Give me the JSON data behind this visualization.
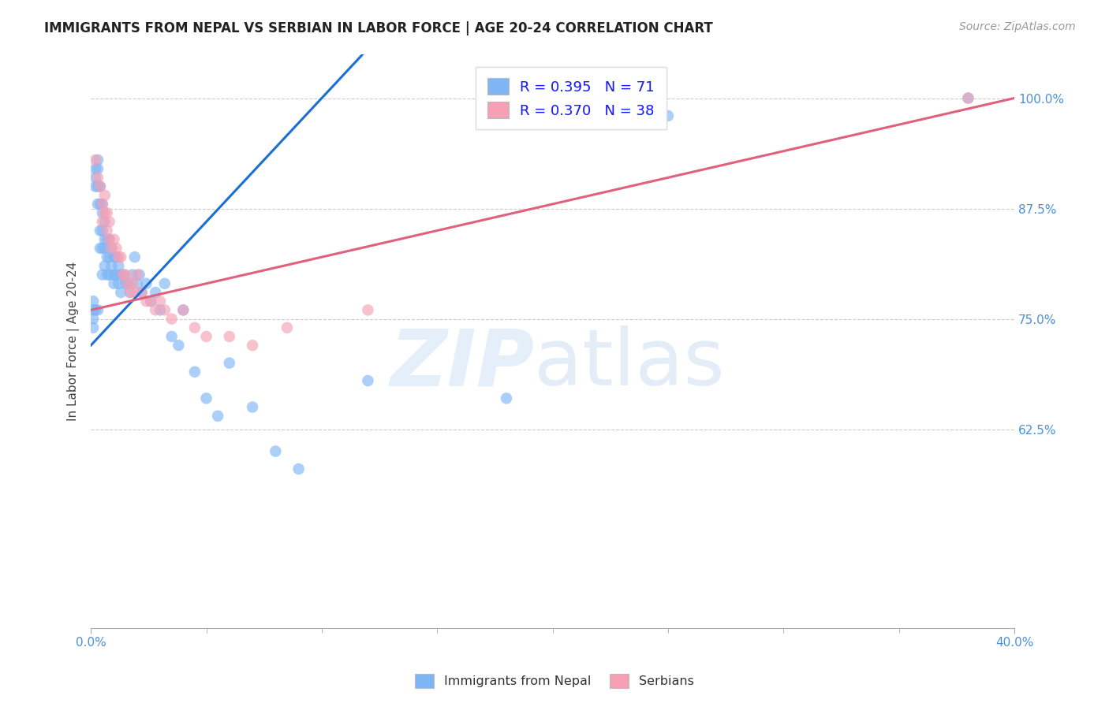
{
  "title": "IMMIGRANTS FROM NEPAL VS SERBIAN IN LABOR FORCE | AGE 20-24 CORRELATION CHART",
  "source": "Source: ZipAtlas.com",
  "ylabel": "In Labor Force | Age 20-24",
  "xlim": [
    0.0,
    0.4
  ],
  "ylim": [
    0.4,
    1.05
  ],
  "xtick_values": [
    0.0,
    0.4
  ],
  "xtick_labels": [
    "0.0%",
    "40.0%"
  ],
  "ytick_values": [
    0.625,
    0.75,
    0.875,
    1.0
  ],
  "ytick_labels": [
    "62.5%",
    "75.0%",
    "87.5%",
    "100.0%"
  ],
  "ytick_grid_values": [
    0.625,
    0.75,
    0.875,
    1.0
  ],
  "nepal_color": "#7eb6f5",
  "serbian_color": "#f5a0b5",
  "nepal_R": 0.395,
  "nepal_N": 71,
  "serbian_R": 0.37,
  "serbian_N": 38,
  "trend_nepal_color": "#1a6fd4",
  "trend_serbian_color": "#e0607e",
  "legend_label_nepal": "Immigrants from Nepal",
  "legend_label_serbian": "Serbians",
  "nepal_x": [
    0.001,
    0.001,
    0.001,
    0.001,
    0.002,
    0.002,
    0.002,
    0.002,
    0.003,
    0.003,
    0.003,
    0.003,
    0.003,
    0.004,
    0.004,
    0.004,
    0.004,
    0.005,
    0.005,
    0.005,
    0.005,
    0.005,
    0.006,
    0.006,
    0.006,
    0.006,
    0.007,
    0.007,
    0.007,
    0.008,
    0.008,
    0.008,
    0.009,
    0.009,
    0.01,
    0.01,
    0.01,
    0.011,
    0.011,
    0.012,
    0.012,
    0.013,
    0.013,
    0.014,
    0.015,
    0.016,
    0.017,
    0.018,
    0.019,
    0.02,
    0.021,
    0.022,
    0.024,
    0.026,
    0.028,
    0.03,
    0.032,
    0.035,
    0.038,
    0.04,
    0.045,
    0.05,
    0.055,
    0.06,
    0.07,
    0.08,
    0.09,
    0.12,
    0.18,
    0.25,
    0.38
  ],
  "nepal_y": [
    0.77,
    0.76,
    0.75,
    0.74,
    0.92,
    0.91,
    0.9,
    0.76,
    0.93,
    0.92,
    0.9,
    0.88,
    0.76,
    0.9,
    0.88,
    0.85,
    0.83,
    0.88,
    0.87,
    0.85,
    0.83,
    0.8,
    0.86,
    0.84,
    0.83,
    0.81,
    0.84,
    0.82,
    0.8,
    0.84,
    0.82,
    0.8,
    0.83,
    0.81,
    0.82,
    0.8,
    0.79,
    0.82,
    0.8,
    0.81,
    0.79,
    0.8,
    0.78,
    0.8,
    0.79,
    0.79,
    0.78,
    0.8,
    0.82,
    0.79,
    0.8,
    0.78,
    0.79,
    0.77,
    0.78,
    0.76,
    0.79,
    0.73,
    0.72,
    0.76,
    0.69,
    0.66,
    0.64,
    0.7,
    0.65,
    0.6,
    0.58,
    0.68,
    0.66,
    0.98,
    1.0
  ],
  "serbian_x": [
    0.002,
    0.003,
    0.004,
    0.005,
    0.005,
    0.006,
    0.006,
    0.007,
    0.007,
    0.008,
    0.008,
    0.009,
    0.01,
    0.011,
    0.012,
    0.013,
    0.014,
    0.015,
    0.016,
    0.017,
    0.018,
    0.019,
    0.02,
    0.022,
    0.024,
    0.026,
    0.028,
    0.03,
    0.032,
    0.035,
    0.04,
    0.045,
    0.05,
    0.06,
    0.07,
    0.085,
    0.12,
    0.38
  ],
  "serbian_y": [
    0.93,
    0.91,
    0.9,
    0.88,
    0.86,
    0.89,
    0.87,
    0.87,
    0.85,
    0.86,
    0.84,
    0.83,
    0.84,
    0.83,
    0.82,
    0.82,
    0.8,
    0.8,
    0.79,
    0.78,
    0.79,
    0.78,
    0.8,
    0.78,
    0.77,
    0.77,
    0.76,
    0.77,
    0.76,
    0.75,
    0.76,
    0.74,
    0.73,
    0.73,
    0.72,
    0.74,
    0.76,
    1.0
  ],
  "nepal_trend_x0": 0.0,
  "nepal_trend_y0": 0.72,
  "nepal_trend_x1": 0.1,
  "nepal_trend_y1": 1.0,
  "serbian_trend_x0": 0.0,
  "serbian_trend_y0": 0.76,
  "serbian_trend_x1": 0.4,
  "serbian_trend_y1": 1.0
}
